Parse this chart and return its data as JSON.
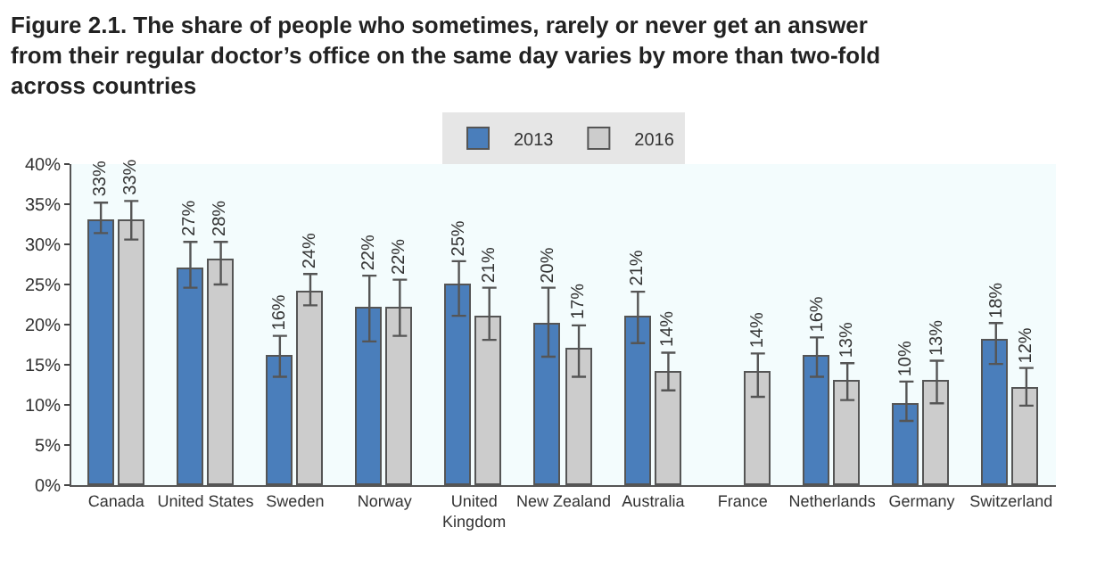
{
  "chart_data": {
    "type": "bar",
    "title": "Figure 2.1. The share of people who sometimes, rarely or never get an answer\nfrom their regular doctor’s office on the same day varies by more than two-fold\nacross countries",
    "categories": [
      "Canada",
      "United States",
      "Sweden",
      "Norway",
      "United Kingdom",
      "New Zealand",
      "Australia",
      "France",
      "Netherlands",
      "Germany",
      "Switzerland"
    ],
    "series": [
      {
        "name": "2013",
        "color": "#4a7ebb",
        "values": [
          33,
          27,
          16,
          22,
          25,
          20,
          21,
          null,
          16,
          10,
          18
        ],
        "errors": [
          [
            31.4,
            35.2
          ],
          [
            24.6,
            30.3
          ],
          [
            13.5,
            18.6
          ],
          [
            17.9,
            26.1
          ],
          [
            21.1,
            27.9
          ],
          [
            16.0,
            24.6
          ],
          [
            17.7,
            24.1
          ],
          null,
          [
            13.5,
            18.4
          ],
          [
            8.0,
            12.9
          ],
          [
            15.1,
            20.2
          ]
        ],
        "value_labels": [
          "33%",
          "27%",
          "16%",
          "22%",
          "25%",
          "20%",
          "21%",
          null,
          "16%",
          "10%",
          "18%"
        ]
      },
      {
        "name": "2016",
        "color": "#cccccc",
        "values": [
          33,
          28,
          24,
          22,
          21,
          17,
          14,
          14,
          13,
          13,
          12
        ],
        "errors": [
          [
            30.6,
            35.4
          ],
          [
            25.0,
            30.3
          ],
          [
            22.4,
            26.3
          ],
          [
            18.6,
            25.6
          ],
          [
            18.1,
            24.6
          ],
          [
            13.5,
            19.9
          ],
          [
            11.8,
            16.5
          ],
          [
            11.0,
            16.4
          ],
          [
            10.6,
            15.2
          ],
          [
            10.2,
            15.5
          ],
          [
            9.9,
            14.6
          ]
        ],
        "value_labels": [
          "33%",
          "28%",
          "24%",
          "22%",
          "21%",
          "17%",
          "14%",
          "14%",
          "13%",
          "13%",
          "12%"
        ]
      }
    ],
    "ylim": [
      0,
      40
    ],
    "yticks": [
      {
        "value": 0,
        "label": "0%"
      },
      {
        "value": 5,
        "label": "5%"
      },
      {
        "value": 10,
        "label": "10%"
      },
      {
        "value": 15,
        "label": "15%"
      },
      {
        "value": 20,
        "label": "20%"
      },
      {
        "value": 25,
        "label": "25%"
      },
      {
        "value": 30,
        "label": "30%"
      },
      {
        "value": 35,
        "label": "35%"
      },
      {
        "value": 40,
        "label": "40%"
      }
    ],
    "legend": "top",
    "grid": false
  }
}
